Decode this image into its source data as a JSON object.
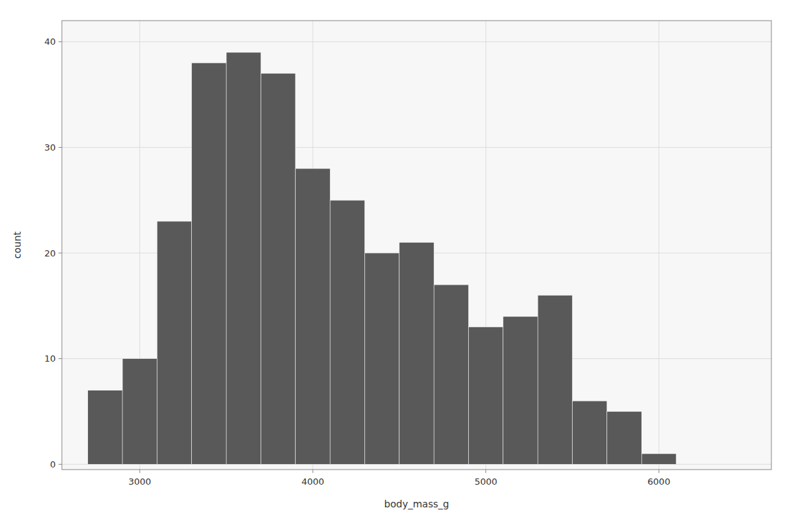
{
  "chart_data": {
    "type": "histogram",
    "bins": [
      2700,
      2900,
      3100,
      3300,
      3500,
      3700,
      3900,
      4100,
      4300,
      4500,
      4700,
      4900,
      5100,
      5300,
      5500,
      5700,
      5900,
      6100
    ],
    "values": [
      7,
      10,
      23,
      38,
      39,
      37,
      28,
      25,
      20,
      21,
      17,
      13,
      14,
      16,
      6,
      5,
      1
    ],
    "color": "#595959",
    "xlabel": "body_mass_g",
    "ylabel": "count",
    "xlim": [
      2550,
      6650
    ],
    "ylim": [
      -0.5,
      42
    ],
    "xticks": [
      3000,
      4000,
      5000,
      6000
    ],
    "yticks": [
      0,
      10,
      20,
      30,
      40
    ],
    "grid": true
  }
}
